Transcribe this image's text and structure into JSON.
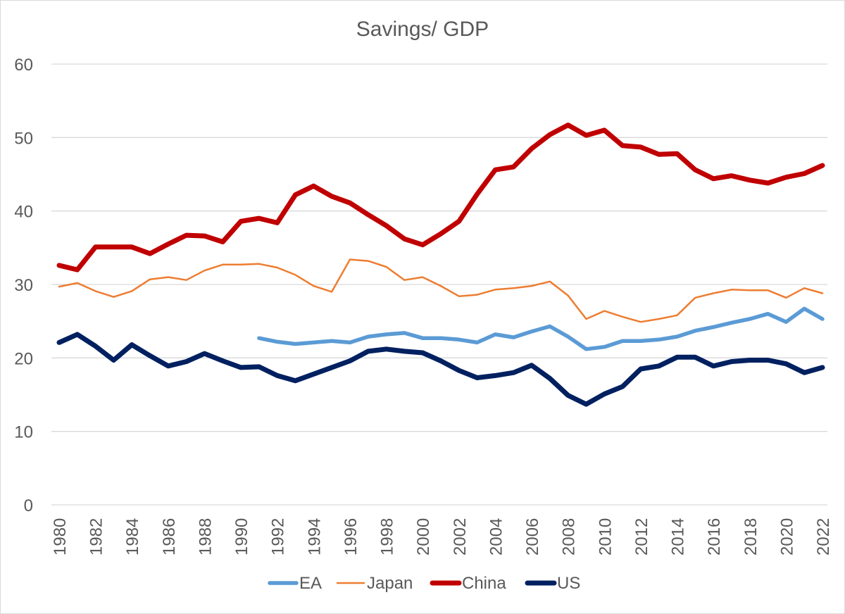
{
  "chart_data": {
    "type": "line",
    "title": "Savings/ GDP",
    "xlabel": "",
    "ylabel": "",
    "ylim": [
      0,
      60
    ],
    "yticks": [
      0,
      10,
      20,
      30,
      40,
      50,
      60
    ],
    "xticks": [
      1980,
      1982,
      1984,
      1986,
      1988,
      1990,
      1992,
      1994,
      1996,
      1998,
      2000,
      2002,
      2004,
      2006,
      2008,
      2010,
      2012,
      2014,
      2016,
      2018,
      2020,
      2022
    ],
    "grid": true,
    "legend_position": "bottom",
    "x": [
      1980,
      1981,
      1982,
      1983,
      1984,
      1985,
      1986,
      1987,
      1988,
      1989,
      1990,
      1991,
      1992,
      1993,
      1994,
      1995,
      1996,
      1997,
      1998,
      1999,
      2000,
      2001,
      2002,
      2003,
      2004,
      2005,
      2006,
      2007,
      2008,
      2009,
      2010,
      2011,
      2012,
      2013,
      2014,
      2015,
      2016,
      2017,
      2018,
      2019,
      2020,
      2021,
      2022
    ],
    "series": [
      {
        "name": "EA",
        "color": "#5b9bd5",
        "weight": "medium",
        "values": [
          null,
          null,
          null,
          null,
          null,
          null,
          null,
          null,
          null,
          null,
          null,
          22.7,
          22.2,
          21.9,
          22.1,
          22.3,
          22.1,
          22.9,
          23.2,
          23.4,
          22.7,
          22.7,
          22.5,
          22.1,
          23.2,
          22.8,
          23.6,
          24.3,
          22.9,
          21.2,
          21.5,
          22.3,
          22.3,
          22.5,
          22.9,
          23.7,
          24.2,
          24.8,
          25.3,
          26.0,
          24.9,
          26.7,
          25.3
        ]
      },
      {
        "name": "Japan",
        "color": "#ed7d31",
        "weight": "thin",
        "values": [
          29.7,
          30.2,
          29.1,
          28.3,
          29.1,
          30.7,
          31.0,
          30.6,
          31.9,
          32.7,
          32.7,
          32.8,
          32.3,
          31.3,
          29.8,
          29.0,
          33.4,
          33.2,
          32.4,
          30.6,
          31.0,
          29.8,
          28.4,
          28.6,
          29.3,
          29.5,
          29.8,
          30.4,
          28.5,
          25.3,
          26.4,
          25.6,
          24.9,
          25.3,
          25.8,
          28.2,
          28.8,
          29.3,
          29.2,
          29.2,
          28.2,
          29.5,
          28.8
        ]
      },
      {
        "name": "China",
        "color": "#c00000",
        "weight": "thick",
        "values": [
          32.6,
          32.0,
          35.1,
          35.1,
          35.1,
          34.2,
          35.5,
          36.7,
          36.6,
          35.8,
          38.6,
          39.0,
          38.4,
          42.2,
          43.4,
          42.0,
          41.1,
          39.5,
          38.0,
          36.2,
          35.4,
          36.9,
          38.6,
          42.3,
          45.6,
          46.0,
          48.5,
          50.4,
          51.7,
          50.3,
          51.0,
          48.9,
          48.7,
          47.7,
          47.8,
          45.6,
          44.4,
          44.8,
          44.2,
          43.8,
          44.6,
          45.1,
          46.2
        ]
      },
      {
        "name": "US",
        "color": "#002060",
        "weight": "thick",
        "values": [
          22.1,
          23.2,
          21.6,
          19.7,
          21.8,
          20.3,
          18.9,
          19.5,
          20.6,
          19.6,
          18.7,
          18.8,
          17.6,
          16.9,
          17.8,
          18.7,
          19.6,
          20.9,
          21.2,
          20.9,
          20.7,
          19.6,
          18.3,
          17.3,
          17.6,
          18.0,
          19.0,
          17.2,
          14.9,
          13.7,
          15.1,
          16.1,
          18.5,
          18.9,
          20.1,
          20.1,
          18.9,
          19.5,
          19.7,
          19.7,
          19.2,
          18.0,
          18.7
        ]
      }
    ]
  }
}
